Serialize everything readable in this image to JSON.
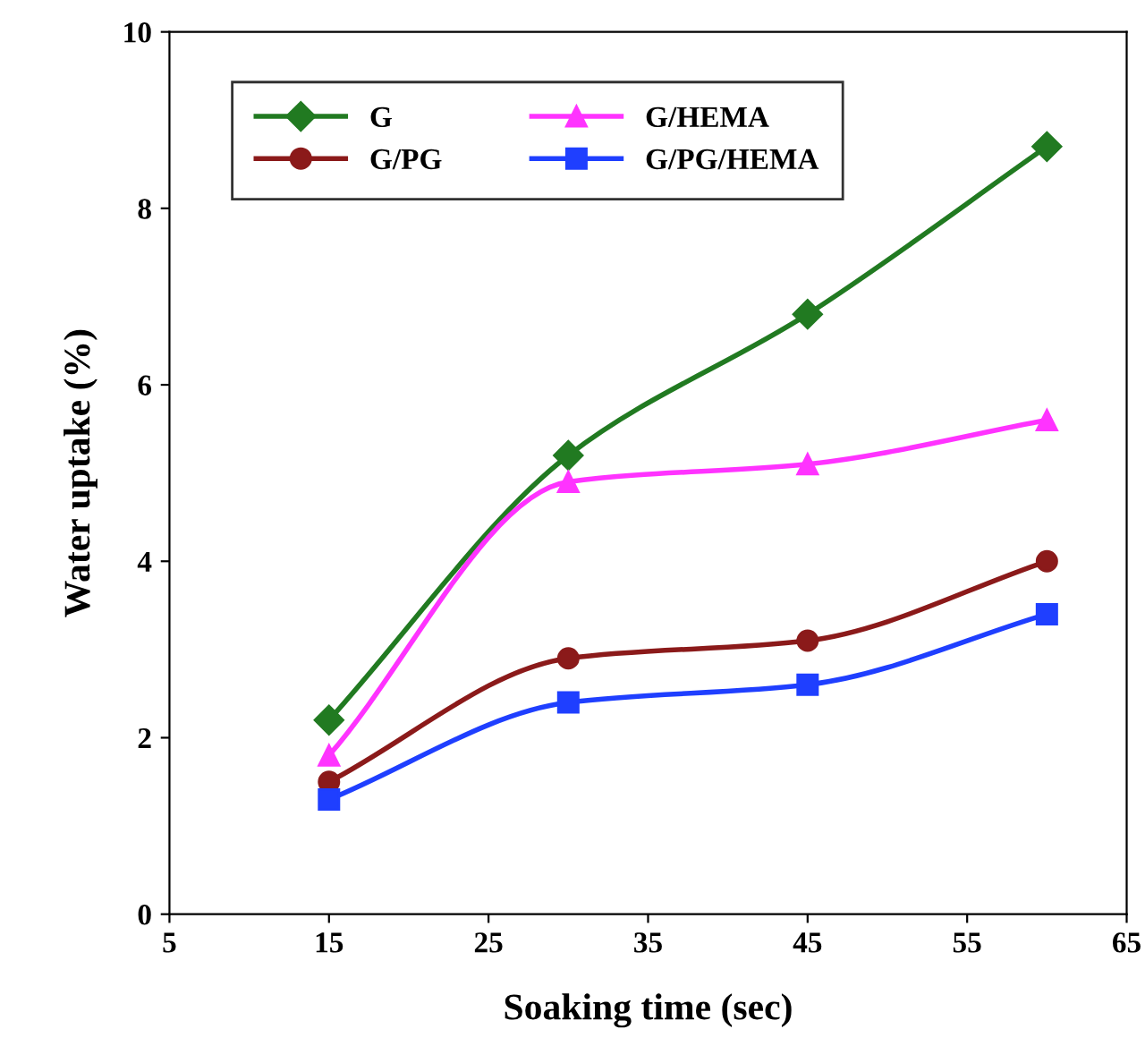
{
  "chart_data": {
    "type": "line",
    "xlabel": "Soaking time (sec)",
    "ylabel": "Water uptake (%)",
    "x": [
      15,
      30,
      45,
      60
    ],
    "series": [
      {
        "name": "G",
        "color": "#217a21",
        "marker": "diamond",
        "values": [
          2.2,
          5.2,
          6.8,
          8.7
        ]
      },
      {
        "name": "G/PG",
        "color": "#8b1a1a",
        "marker": "circle",
        "values": [
          1.5,
          2.9,
          3.1,
          4.0
        ]
      },
      {
        "name": "G/HEMA",
        "color": "#ff33ff",
        "marker": "triangle",
        "values": [
          1.8,
          4.9,
          5.1,
          5.6
        ]
      },
      {
        "name": "G/PG/HEMA",
        "color": "#1f3fff",
        "marker": "square",
        "values": [
          1.3,
          2.4,
          2.6,
          3.4
        ]
      }
    ],
    "xlim": [
      5,
      65
    ],
    "xticks": [
      5,
      15,
      25,
      35,
      45,
      55,
      65
    ],
    "ylim": [
      0,
      10
    ],
    "yticks": [
      0,
      2,
      4,
      6,
      8,
      10
    ],
    "grid": false,
    "legend": "top left",
    "line_style": "solid"
  }
}
